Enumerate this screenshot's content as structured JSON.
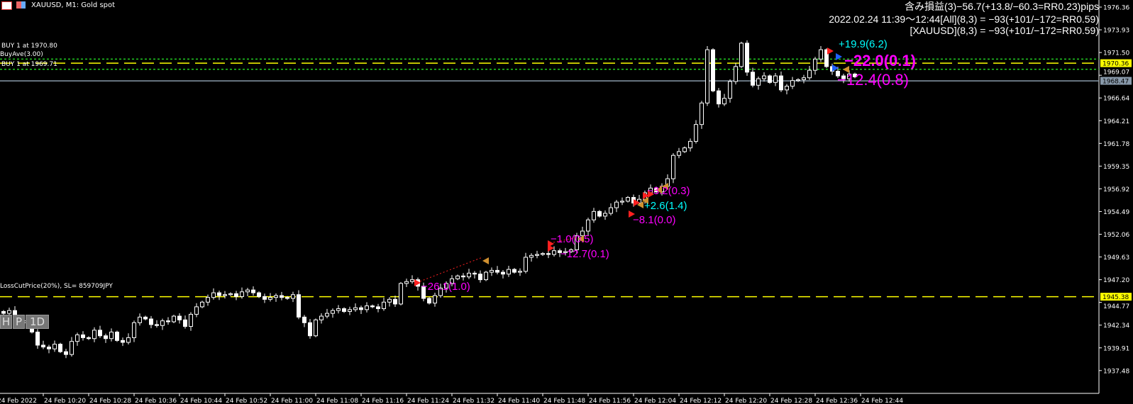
{
  "window": {
    "title": "XAUUSD, M1:  Gold spot"
  },
  "info": {
    "line1": "含み損益(3)−56.7(+13.8/−60.3=RR0.23)pips",
    "line2": "2022.02.24 11:39〜12:44[All](8,3) = −93(+101/−172=RR0.59)",
    "line3": "[XAUUSD](8,3) = −93(+101/−172=RR0.59)"
  },
  "line_labels": {
    "buy1": "BUY 1 at 1970.80",
    "buy_ave": "BuyAve(3.00)",
    "buy2": "BUY 1 at 1969.71",
    "losscut": "LossCutPrice(20%), SL= 859709JPY"
  },
  "buttons": {
    "h": "H",
    "p": "P",
    "d1": "1D"
  },
  "trade_labels": [
    {
      "text": "−26.1(1.0)",
      "color": "#ff00ff"
    },
    {
      "text": "−1.0(0.5)",
      "color": "#ff00ff"
    },
    {
      "text": "−12.7(0.1)",
      "color": "#ff00ff"
    },
    {
      "text": "−3.2(0.3)",
      "color": "#ff00ff"
    },
    {
      "text": "+2.6(1.4)",
      "color": "#00ffff"
    },
    {
      "text": "−8.1(0.0)",
      "color": "#ff00ff"
    },
    {
      "text": "+19.9(6.2)",
      "color": "#00ffff"
    },
    {
      "text": "−22.0(0.1)",
      "color": "#ff00ff"
    },
    {
      "text": "−12.4(0.8)",
      "color": "#ff00ff"
    }
  ],
  "chart_data": {
    "type": "candlestick",
    "symbol": "XAUUSD",
    "timeframe": "M1",
    "first_bar": "24 Feb 2022 10:13",
    "y_ticks": [
      "1976.36",
      "1973.93",
      "1971.50",
      "1969.07",
      "1966.64",
      "1964.21",
      "1961.78",
      "1959.35",
      "1956.92",
      "1954.49",
      "1952.06",
      "1949.63",
      "1947.20",
      "1944.77",
      "1942.34",
      "1939.91",
      "1937.48"
    ],
    "x_ticks": [
      "24 Feb 2022",
      "24 Feb 10:20",
      "24 Feb 10:28",
      "24 Feb 10:36",
      "24 Feb 10:44",
      "24 Feb 10:52",
      "24 Feb 11:00",
      "24 Feb 11:08",
      "24 Feb 11:16",
      "24 Feb 11:24",
      "24 Feb 11:32",
      "24 Feb 11:40",
      "24 Feb 11:48",
      "24 Feb 11:56",
      "24 Feb 12:04",
      "24 Feb 12:12",
      "24 Feb 12:20",
      "24 Feb 12:28",
      "24 Feb 12:36",
      "24 Feb 12:44"
    ],
    "ylim": [
      1936.6,
      1977.1
    ],
    "levels": [
      {
        "price": 1970.8,
        "style": "dotted",
        "color": "#22cc22"
      },
      {
        "price": 1969.71,
        "style": "dotted",
        "color": "#22cc22"
      },
      {
        "price": 1970.36,
        "style": "dashed",
        "color": "#ffff00",
        "label": "1970.36"
      },
      {
        "price": 1968.47,
        "style": "solid",
        "color": "#8899aa",
        "label": "1968.47"
      },
      {
        "price": 1945.38,
        "style": "dashed",
        "color": "#ffff00",
        "label": "1945.38"
      }
    ],
    "close": [
      1943.6,
      1943.9,
      1943.2,
      1942.6,
      1942.8,
      1941.6,
      1940.2,
      1940.0,
      1939.8,
      1940.3,
      1939.5,
      1939.2,
      1940.6,
      1941.3,
      1941.0,
      1940.9,
      1941.8,
      1941.2,
      1940.9,
      1941.6,
      1940.7,
      1940.5,
      1941.0,
      1942.6,
      1943.2,
      1943.0,
      1942.4,
      1942.3,
      1942.8,
      1942.7,
      1943.3,
      1942.9,
      1942.2,
      1943.5,
      1944.3,
      1944.8,
      1945.3,
      1945.8,
      1945.5,
      1945.6,
      1945.7,
      1945.4,
      1945.9,
      1946.1,
      1945.8,
      1945.4,
      1945.1,
      1945.3,
      1945.5,
      1945.3,
      1945.2,
      1945.6,
      1943.2,
      1942.6,
      1941.2,
      1942.9,
      1943.3,
      1943.6,
      1943.9,
      1944.1,
      1943.8,
      1944.0,
      1944.2,
      1944.0,
      1944.4,
      1944.3,
      1944.1,
      1944.8,
      1945.1,
      1944.6,
      1946.8,
      1947.0,
      1947.2,
      1946.5,
      1945.2,
      1944.7,
      1945.5,
      1946.3,
      1946.8,
      1947.3,
      1947.6,
      1947.5,
      1947.9,
      1947.8,
      1947.2,
      1948.0,
      1948.2,
      1948.0,
      1947.8,
      1948.3,
      1948.0,
      1948.1,
      1949.6,
      1949.8,
      1949.9,
      1950.0,
      1949.9,
      1950.3,
      1950.1,
      1950.2,
      1950.4,
      1951.9,
      1952.4,
      1953.6,
      1954.5,
      1954.0,
      1954.3,
      1954.9,
      1955.5,
      1955.6,
      1956.0,
      1955.4,
      1955.8,
      1956.5,
      1957.0,
      1956.6,
      1957.2,
      1958.0,
      1960.5,
      1960.9,
      1961.3,
      1962.0,
      1963.8,
      1966.1,
      1971.8,
      1967.4,
      1966.0,
      1966.6,
      1968.4,
      1970.0,
      1972.5,
      1969.4,
      1968.0,
      1968.7,
      1969.0,
      1968.3,
      1969.0,
      1967.5,
      1967.9,
      1968.5,
      1968.6,
      1968.8,
      1969.6,
      1970.8,
      1971.8,
      1970.0,
      1969.5,
      1969.0,
      1968.7,
      1969.2,
      1968.9
    ]
  }
}
